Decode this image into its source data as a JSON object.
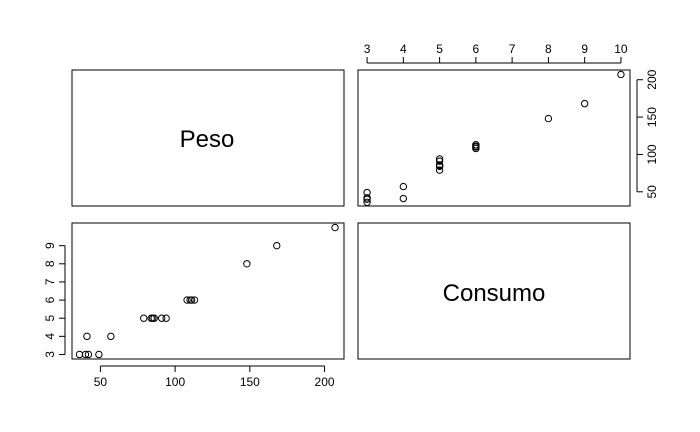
{
  "chart_data": {
    "type": "scatter",
    "kind": "pairs-matrix",
    "variables": [
      "Peso",
      "Consumo"
    ],
    "panels": [
      {
        "name": "consumo-vs-peso",
        "position": "top-right",
        "x_variable": "Consumo",
        "y_variable": "Peso",
        "xlim": [
          2.75,
          10.25
        ],
        "ylim": [
          31,
          213
        ],
        "x_ticks": [
          3,
          4,
          5,
          6,
          7,
          8,
          9,
          10
        ],
        "y_ticks": [
          50,
          100,
          150,
          200
        ],
        "x_axis_side": "top",
        "y_axis_side": "right"
      },
      {
        "name": "peso-vs-consumo",
        "position": "bottom-left",
        "x_variable": "Peso",
        "y_variable": "Consumo",
        "xlim": [
          31,
          213
        ],
        "ylim": [
          2.75,
          10.25
        ],
        "x_ticks": [
          50,
          100,
          150,
          200
        ],
        "y_ticks": [
          3,
          4,
          5,
          6,
          7,
          8,
          9
        ],
        "x_axis_side": "bottom",
        "y_axis_side": "left"
      }
    ],
    "points": [
      {
        "peso": 36,
        "consumo": 3
      },
      {
        "peso": 40,
        "consumo": 3
      },
      {
        "peso": 42,
        "consumo": 3
      },
      {
        "peso": 49,
        "consumo": 3
      },
      {
        "peso": 41,
        "consumo": 4
      },
      {
        "peso": 57,
        "consumo": 4
      },
      {
        "peso": 79,
        "consumo": 5
      },
      {
        "peso": 84,
        "consumo": 5
      },
      {
        "peso": 85,
        "consumo": 5
      },
      {
        "peso": 86,
        "consumo": 5
      },
      {
        "peso": 91,
        "consumo": 5
      },
      {
        "peso": 94,
        "consumo": 5
      },
      {
        "peso": 108,
        "consumo": 6
      },
      {
        "peso": 110,
        "consumo": 6
      },
      {
        "peso": 111,
        "consumo": 6
      },
      {
        "peso": 113,
        "consumo": 6
      },
      {
        "peso": 148,
        "consumo": 8
      },
      {
        "peso": 168,
        "consumo": 9
      },
      {
        "peso": 207,
        "consumo": 10
      }
    ]
  }
}
